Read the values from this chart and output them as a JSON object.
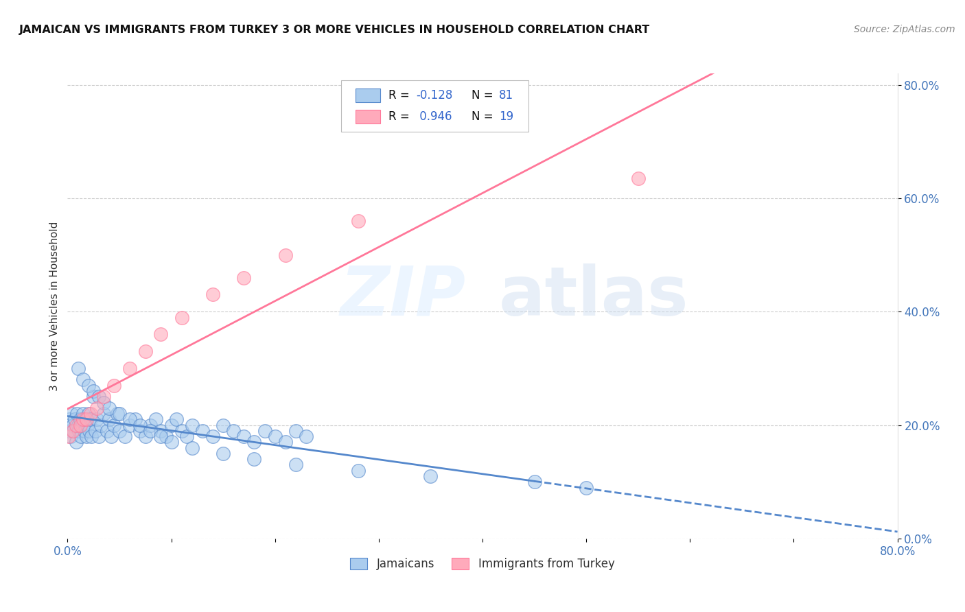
{
  "title": "JAMAICAN VS IMMIGRANTS FROM TURKEY 3 OR MORE VEHICLES IN HOUSEHOLD CORRELATION CHART",
  "source": "Source: ZipAtlas.com",
  "ylabel": "3 or more Vehicles in Household",
  "xlim": [
    0.0,
    0.8
  ],
  "ylim": [
    0.0,
    0.82
  ],
  "xtick_positions": [
    0.0,
    0.1,
    0.2,
    0.3,
    0.4,
    0.5,
    0.6,
    0.7,
    0.8
  ],
  "xticklabels": [
    "0.0%",
    "",
    "",
    "",
    "",
    "",
    "",
    "",
    "80.0%"
  ],
  "ytick_positions": [
    0.0,
    0.2,
    0.4,
    0.6,
    0.8
  ],
  "yticklabels_right": [
    "0.0%",
    "20.0%",
    "40.0%",
    "60.0%",
    "80.0%"
  ],
  "blue_scatter": "#AACCEE",
  "pink_scatter": "#FFAABB",
  "blue_line": "#5588CC",
  "pink_line": "#FF7799",
  "legend_box_color": "#CCCCCC",
  "watermark_zip": "ZIP",
  "watermark_atlas": "atlas",
  "legend_entries": [
    "Jamaicans",
    "Immigrants from Turkey"
  ],
  "background_color": "#FFFFFF",
  "grid_color": "#CCCCCC",
  "tick_color": "#4477BB",
  "text_color": "#333333",
  "blue_r": "-0.128",
  "blue_n": "81",
  "pink_r": "0.946",
  "pink_n": "19",
  "jam_x": [
    0.001,
    0.002,
    0.003,
    0.004,
    0.005,
    0.006,
    0.007,
    0.008,
    0.009,
    0.01,
    0.011,
    0.012,
    0.013,
    0.014,
    0.015,
    0.016,
    0.017,
    0.018,
    0.019,
    0.02,
    0.021,
    0.022,
    0.023,
    0.025,
    0.027,
    0.028,
    0.03,
    0.032,
    0.035,
    0.038,
    0.04,
    0.042,
    0.045,
    0.048,
    0.05,
    0.055,
    0.06,
    0.065,
    0.07,
    0.075,
    0.08,
    0.085,
    0.09,
    0.095,
    0.1,
    0.105,
    0.11,
    0.115,
    0.12,
    0.13,
    0.14,
    0.15,
    0.16,
    0.17,
    0.18,
    0.19,
    0.2,
    0.21,
    0.22,
    0.23,
    0.01,
    0.015,
    0.02,
    0.025,
    0.03,
    0.035,
    0.04,
    0.05,
    0.06,
    0.07,
    0.08,
    0.09,
    0.1,
    0.12,
    0.15,
    0.18,
    0.22,
    0.28,
    0.35,
    0.45,
    0.5
  ],
  "jam_y": [
    0.19,
    0.21,
    0.18,
    0.22,
    0.2,
    0.19,
    0.21,
    0.17,
    0.22,
    0.2,
    0.19,
    0.21,
    0.18,
    0.2,
    0.22,
    0.19,
    0.21,
    0.18,
    0.2,
    0.22,
    0.19,
    0.21,
    0.18,
    0.25,
    0.19,
    0.21,
    0.18,
    0.2,
    0.22,
    0.19,
    0.21,
    0.18,
    0.2,
    0.22,
    0.19,
    0.18,
    0.2,
    0.21,
    0.19,
    0.18,
    0.2,
    0.21,
    0.19,
    0.18,
    0.2,
    0.21,
    0.19,
    0.18,
    0.2,
    0.19,
    0.18,
    0.2,
    0.19,
    0.18,
    0.17,
    0.19,
    0.18,
    0.17,
    0.19,
    0.18,
    0.3,
    0.28,
    0.27,
    0.26,
    0.25,
    0.24,
    0.23,
    0.22,
    0.21,
    0.2,
    0.19,
    0.18,
    0.17,
    0.16,
    0.15,
    0.14,
    0.13,
    0.12,
    0.11,
    0.1,
    0.09
  ],
  "tur_x": [
    0.001,
    0.005,
    0.008,
    0.012,
    0.015,
    0.018,
    0.022,
    0.028,
    0.035,
    0.045,
    0.06,
    0.075,
    0.09,
    0.11,
    0.14,
    0.17,
    0.21,
    0.28,
    0.55
  ],
  "tur_y": [
    0.18,
    0.19,
    0.2,
    0.2,
    0.21,
    0.21,
    0.22,
    0.23,
    0.25,
    0.27,
    0.3,
    0.33,
    0.36,
    0.39,
    0.43,
    0.46,
    0.5,
    0.56,
    0.635
  ]
}
